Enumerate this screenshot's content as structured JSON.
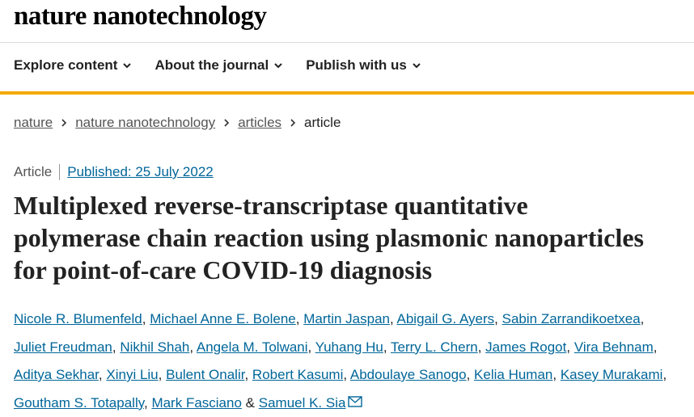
{
  "header": {
    "logo": "nature nanotechnology",
    "nav": [
      "Explore content",
      "About the journal",
      "Publish with us"
    ]
  },
  "breadcrumb": [
    "nature",
    "nature nanotechnology",
    "articles",
    "article"
  ],
  "article": {
    "type": "Article",
    "published": "Published: 25 July 2022",
    "title": "Multiplexed reverse-transcriptase quantitative polymerase chain reaction using plasmonic nanoparticles for point-of-care COVID-19 diagnosis",
    "author_lines": [
      [
        {
          "name": "Nicole R. Blumenfeld",
          "sep": ","
        },
        {
          "name": "Michael Anne E. Bolene",
          "sep": ","
        },
        {
          "name": "Martin Jaspan",
          "sep": ","
        },
        {
          "name": "Abigail G. Ayers",
          "sep": ","
        },
        {
          "name": "Sabin Zarrandikoetxea",
          "sep": ","
        }
      ],
      [
        {
          "name": "Juliet Freudman",
          "sep": ","
        },
        {
          "name": "Nikhil Shah",
          "sep": ","
        },
        {
          "name": "Angela M. Tolwani",
          "sep": ","
        },
        {
          "name": "Yuhang Hu",
          "sep": ","
        },
        {
          "name": "Terry L. Chern",
          "sep": ","
        },
        {
          "name": "James Rogot",
          "sep": ","
        },
        {
          "name": "Vira Behnam",
          "sep": ","
        }
      ],
      [
        {
          "name": "Aditya Sekhar",
          "sep": ","
        },
        {
          "name": "Xinyi Liu",
          "sep": ","
        },
        {
          "name": "Bulent Onalir",
          "sep": ","
        },
        {
          "name": "Robert Kasumi",
          "sep": ","
        },
        {
          "name": "Abdoulaye Sanogo",
          "sep": ","
        },
        {
          "name": "Kelia Human",
          "sep": ","
        },
        {
          "name": "Kasey Murakami",
          "sep": ","
        }
      ],
      [
        {
          "name": "Goutham S. Totapally",
          "sep": ","
        },
        {
          "name": "Mark Fasciano",
          "sep": "&"
        },
        {
          "name": "Samuel K. Sia"
        }
      ]
    ]
  }
}
